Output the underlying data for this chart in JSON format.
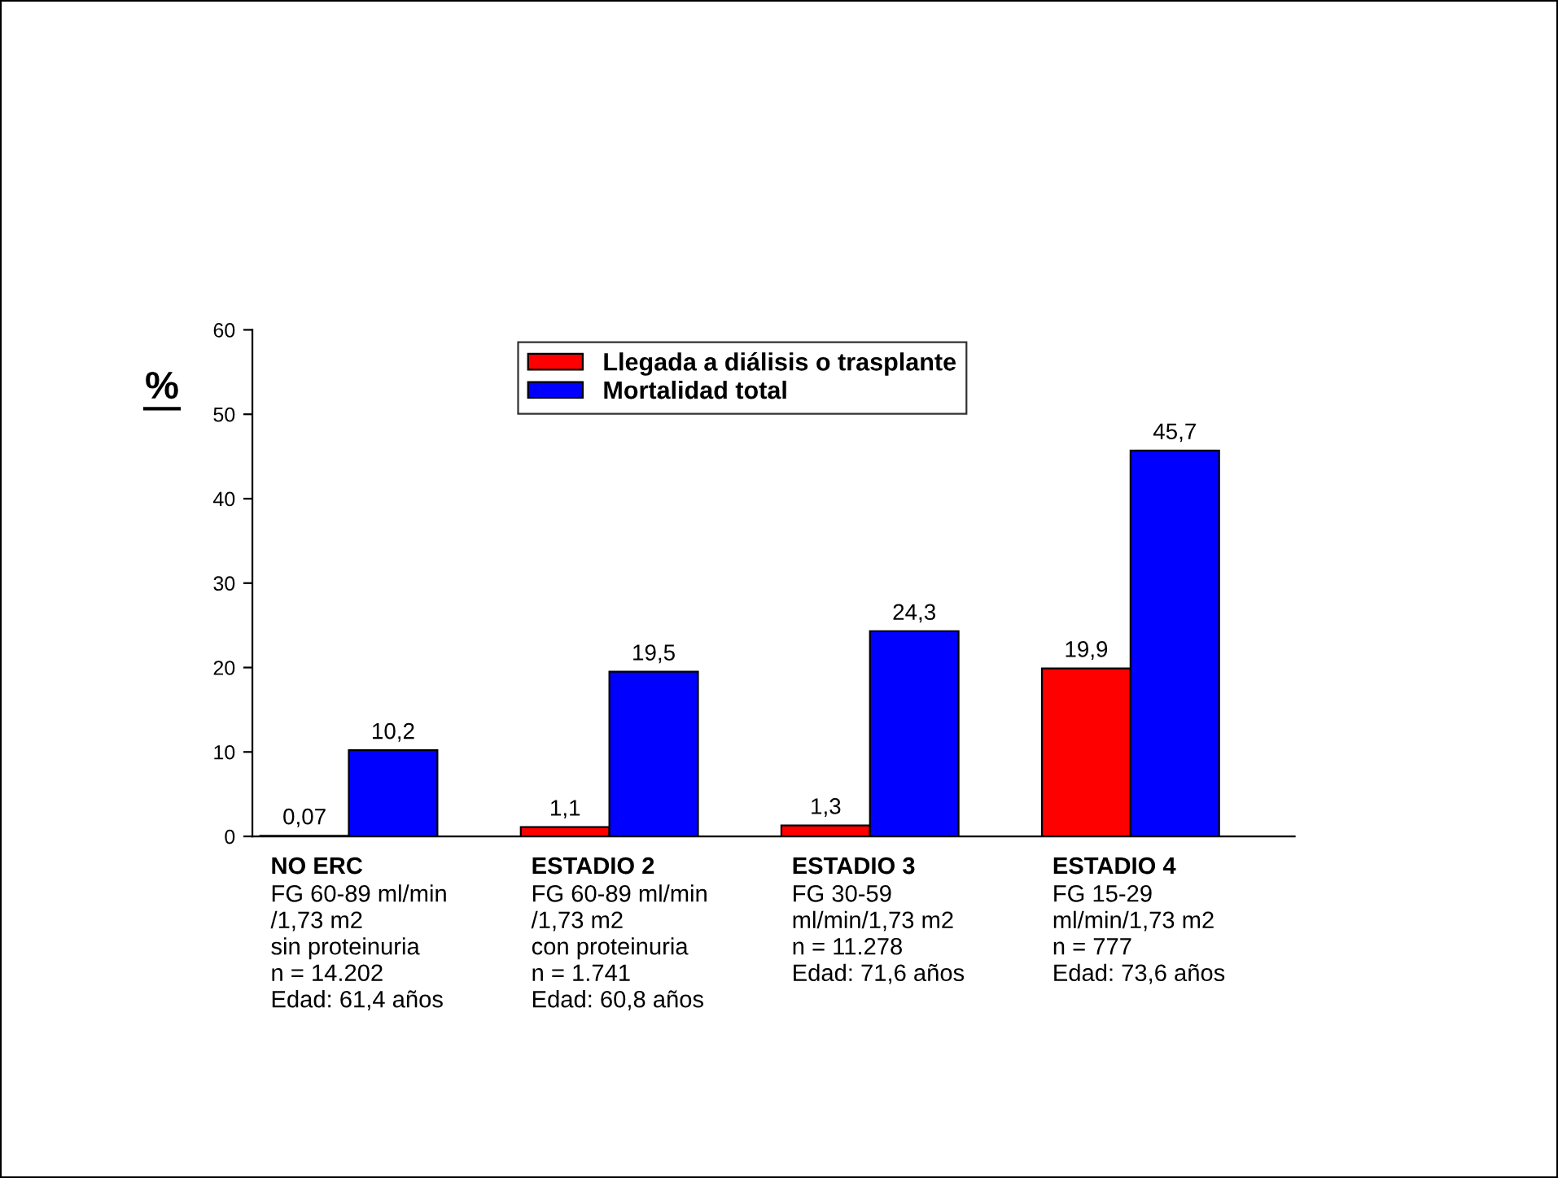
{
  "chart_data": {
    "type": "bar",
    "categories": [
      "NO ERC\nFG 60-89 ml/min\n/1,73 m2\nsin proteinuria\nn = 14.202\nEdad: 61,4 años",
      "ESTADIO 2\nFG 60-89 ml/min\n/1,73 m2\ncon proteinuria\nn = 1.741\nEdad: 60,8 años",
      "ESTADIO 3\nFG 30-59\nml/min/1,73 m2\nn = 11.278\nEdad: 71,6 años",
      "ESTADIO 4\nFG 15-29\nml/min/1,73 m2\nn = 777\nEdad: 73,6 años"
    ],
    "series": [
      {
        "name": "Llegada a diálisis o trasplante",
        "color": "#ff0000",
        "values": [
          0.07,
          1.1,
          1.3,
          19.9
        ],
        "value_labels": [
          "0,07",
          "1,1",
          "1,3",
          "19,9"
        ]
      },
      {
        "name": "Mortalidad total",
        "color": "#0000ff",
        "values": [
          10.2,
          19.5,
          24.3,
          45.7
        ],
        "value_labels": [
          "10,2",
          "19,5",
          "24,3",
          "45,7"
        ]
      }
    ],
    "ylabel": "%",
    "ylim": [
      0,
      60
    ],
    "yticks": [
      0,
      10,
      20,
      30,
      40,
      50,
      60
    ],
    "grid": false,
    "legend": "top"
  }
}
